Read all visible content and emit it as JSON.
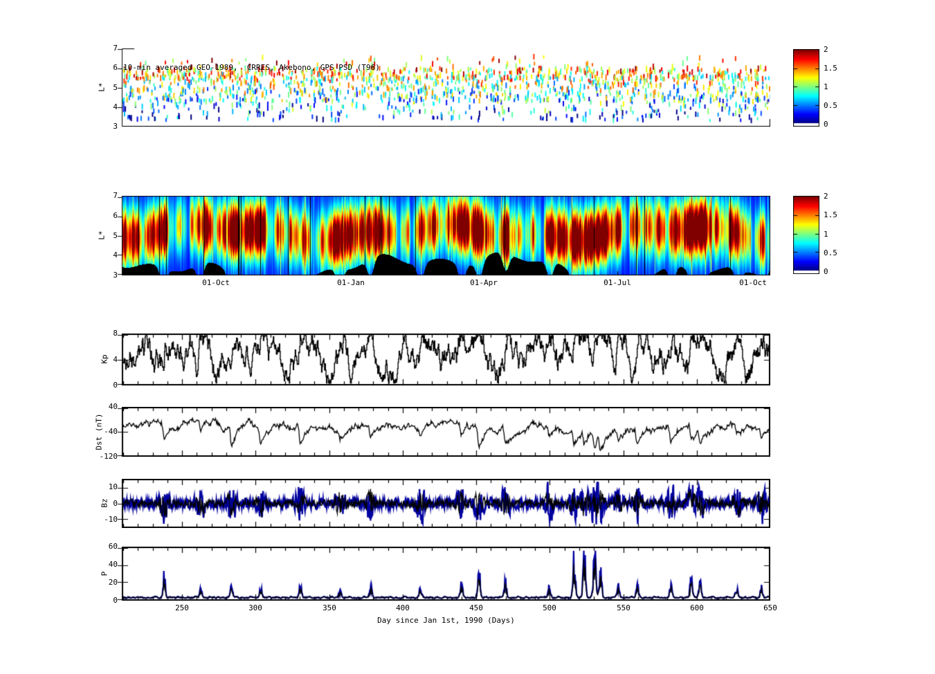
{
  "figure": {
    "background": "#ffffff",
    "xlabel": "Day since Jan 1st, 1990 (Days)",
    "xlim": [
      209,
      650
    ],
    "x_day_ticks": [
      "250",
      "300",
      "350",
      "400",
      "450",
      "500",
      "550",
      "600",
      "650"
    ],
    "x_day_tick_values": [
      250,
      300,
      350,
      400,
      450,
      500,
      550,
      600,
      650
    ],
    "date_ticks": [
      {
        "day": 273,
        "label": "01-Oct"
      },
      {
        "day": 365,
        "label": "01-Jan"
      },
      {
        "day": 455,
        "label": "01-Apr"
      },
      {
        "day": 546,
        "label": "01-Jul"
      },
      {
        "day": 638,
        "label": "01-Oct"
      }
    ],
    "trace_color": "#000000",
    "accent_line_color": "#0000a0",
    "storms": [
      {
        "day": 237,
        "dst": -105,
        "p": 22
      },
      {
        "day": 262,
        "dst": -70,
        "p": 10
      },
      {
        "day": 283,
        "dst": -110,
        "p": 12
      },
      {
        "day": 303,
        "dst": -75,
        "p": 10
      },
      {
        "day": 330,
        "dst": -105,
        "p": 14
      },
      {
        "day": 357,
        "dst": -60,
        "p": 8
      },
      {
        "day": 378,
        "dst": -65,
        "p": 12
      },
      {
        "day": 412,
        "dst": -70,
        "p": 10
      },
      {
        "day": 440,
        "dst": -80,
        "p": 14
      },
      {
        "day": 452,
        "dst": -115,
        "p": 28
      },
      {
        "day": 470,
        "dst": -85,
        "p": 16
      },
      {
        "day": 500,
        "dst": -70,
        "p": 12
      },
      {
        "day": 517,
        "dst": -95,
        "p": 42
      },
      {
        "day": 524,
        "dst": -90,
        "p": 50
      },
      {
        "day": 531,
        "dst": -105,
        "p": 52
      },
      {
        "day": 535,
        "dst": -110,
        "p": 30
      },
      {
        "day": 547,
        "dst": -75,
        "p": 14
      },
      {
        "day": 560,
        "dst": -90,
        "p": 16
      },
      {
        "day": 583,
        "dst": -100,
        "p": 12
      },
      {
        "day": 597,
        "dst": -95,
        "p": 20
      },
      {
        "day": 603,
        "dst": -85,
        "p": 18
      },
      {
        "day": 628,
        "dst": -70,
        "p": 10
      },
      {
        "day": 645,
        "dst": -65,
        "p": 12
      }
    ]
  },
  "colorbar": {
    "lim": [
      0,
      2
    ],
    "tick_values": [
      0,
      0.5,
      1,
      1.5,
      2
    ],
    "tick_labels": [
      "0",
      "0.5",
      "1",
      "1.5",
      "2"
    ],
    "colormap": "jet"
  },
  "chart_data": [
    {
      "id": "psd_scatter",
      "type": "scatter",
      "title": "10-min averaged GEO-1989,  CRRES, Akebono, GPS PSD (T96)",
      "ylabel": "L*",
      "ylim": [
        3,
        7
      ],
      "yticks": [
        3,
        4,
        5,
        6,
        7
      ],
      "value_range": [
        0,
        2
      ],
      "n_points": 1700,
      "seed": 7,
      "note": "colored dashes, jet colormap of PSD value 0-2; dense red/orange band near L*=5.5-6, blue/cyan sparse below L*=4.5"
    },
    {
      "id": "psd_spectrogram",
      "type": "heatmap",
      "ylabel": "L*",
      "ylim": [
        3,
        7
      ],
      "yticks": [
        3,
        4,
        5,
        6,
        7
      ],
      "value_range": [
        0,
        2
      ],
      "seed": 11,
      "gap_prob": 0.012,
      "peak_center": 5.15,
      "peak_width": 0.95,
      "note": "vertical-streaked jet spectrogram, red cores L*=4-6.5, black no-data columns and black low-L* regions"
    },
    {
      "id": "kp",
      "type": "line",
      "ylabel": "Kp",
      "ylim": [
        0,
        8
      ],
      "yticks": [
        0,
        4,
        8
      ],
      "seed": 3,
      "n": 1300,
      "baseline": 3.0
    },
    {
      "id": "dst",
      "type": "line",
      "ylabel": "Dst (nT)",
      "ylim": [
        -120,
        40
      ],
      "yticks": [
        -120,
        -40,
        40
      ],
      "seed": 4,
      "n": 1100,
      "baseline": -20
    },
    {
      "id": "bz",
      "type": "line2",
      "ylabel": "Bz",
      "ylim": [
        -15,
        15
      ],
      "yticks": [
        -10,
        0,
        10
      ],
      "seed": 5,
      "n": 1400,
      "base_amplitude": 3.0
    },
    {
      "id": "p",
      "type": "line2",
      "ylabel": "P",
      "ylim": [
        0,
        60
      ],
      "yticks": [
        0,
        20,
        40,
        60
      ],
      "seed": 6,
      "n": 1400,
      "baseline": 1.5
    }
  ]
}
